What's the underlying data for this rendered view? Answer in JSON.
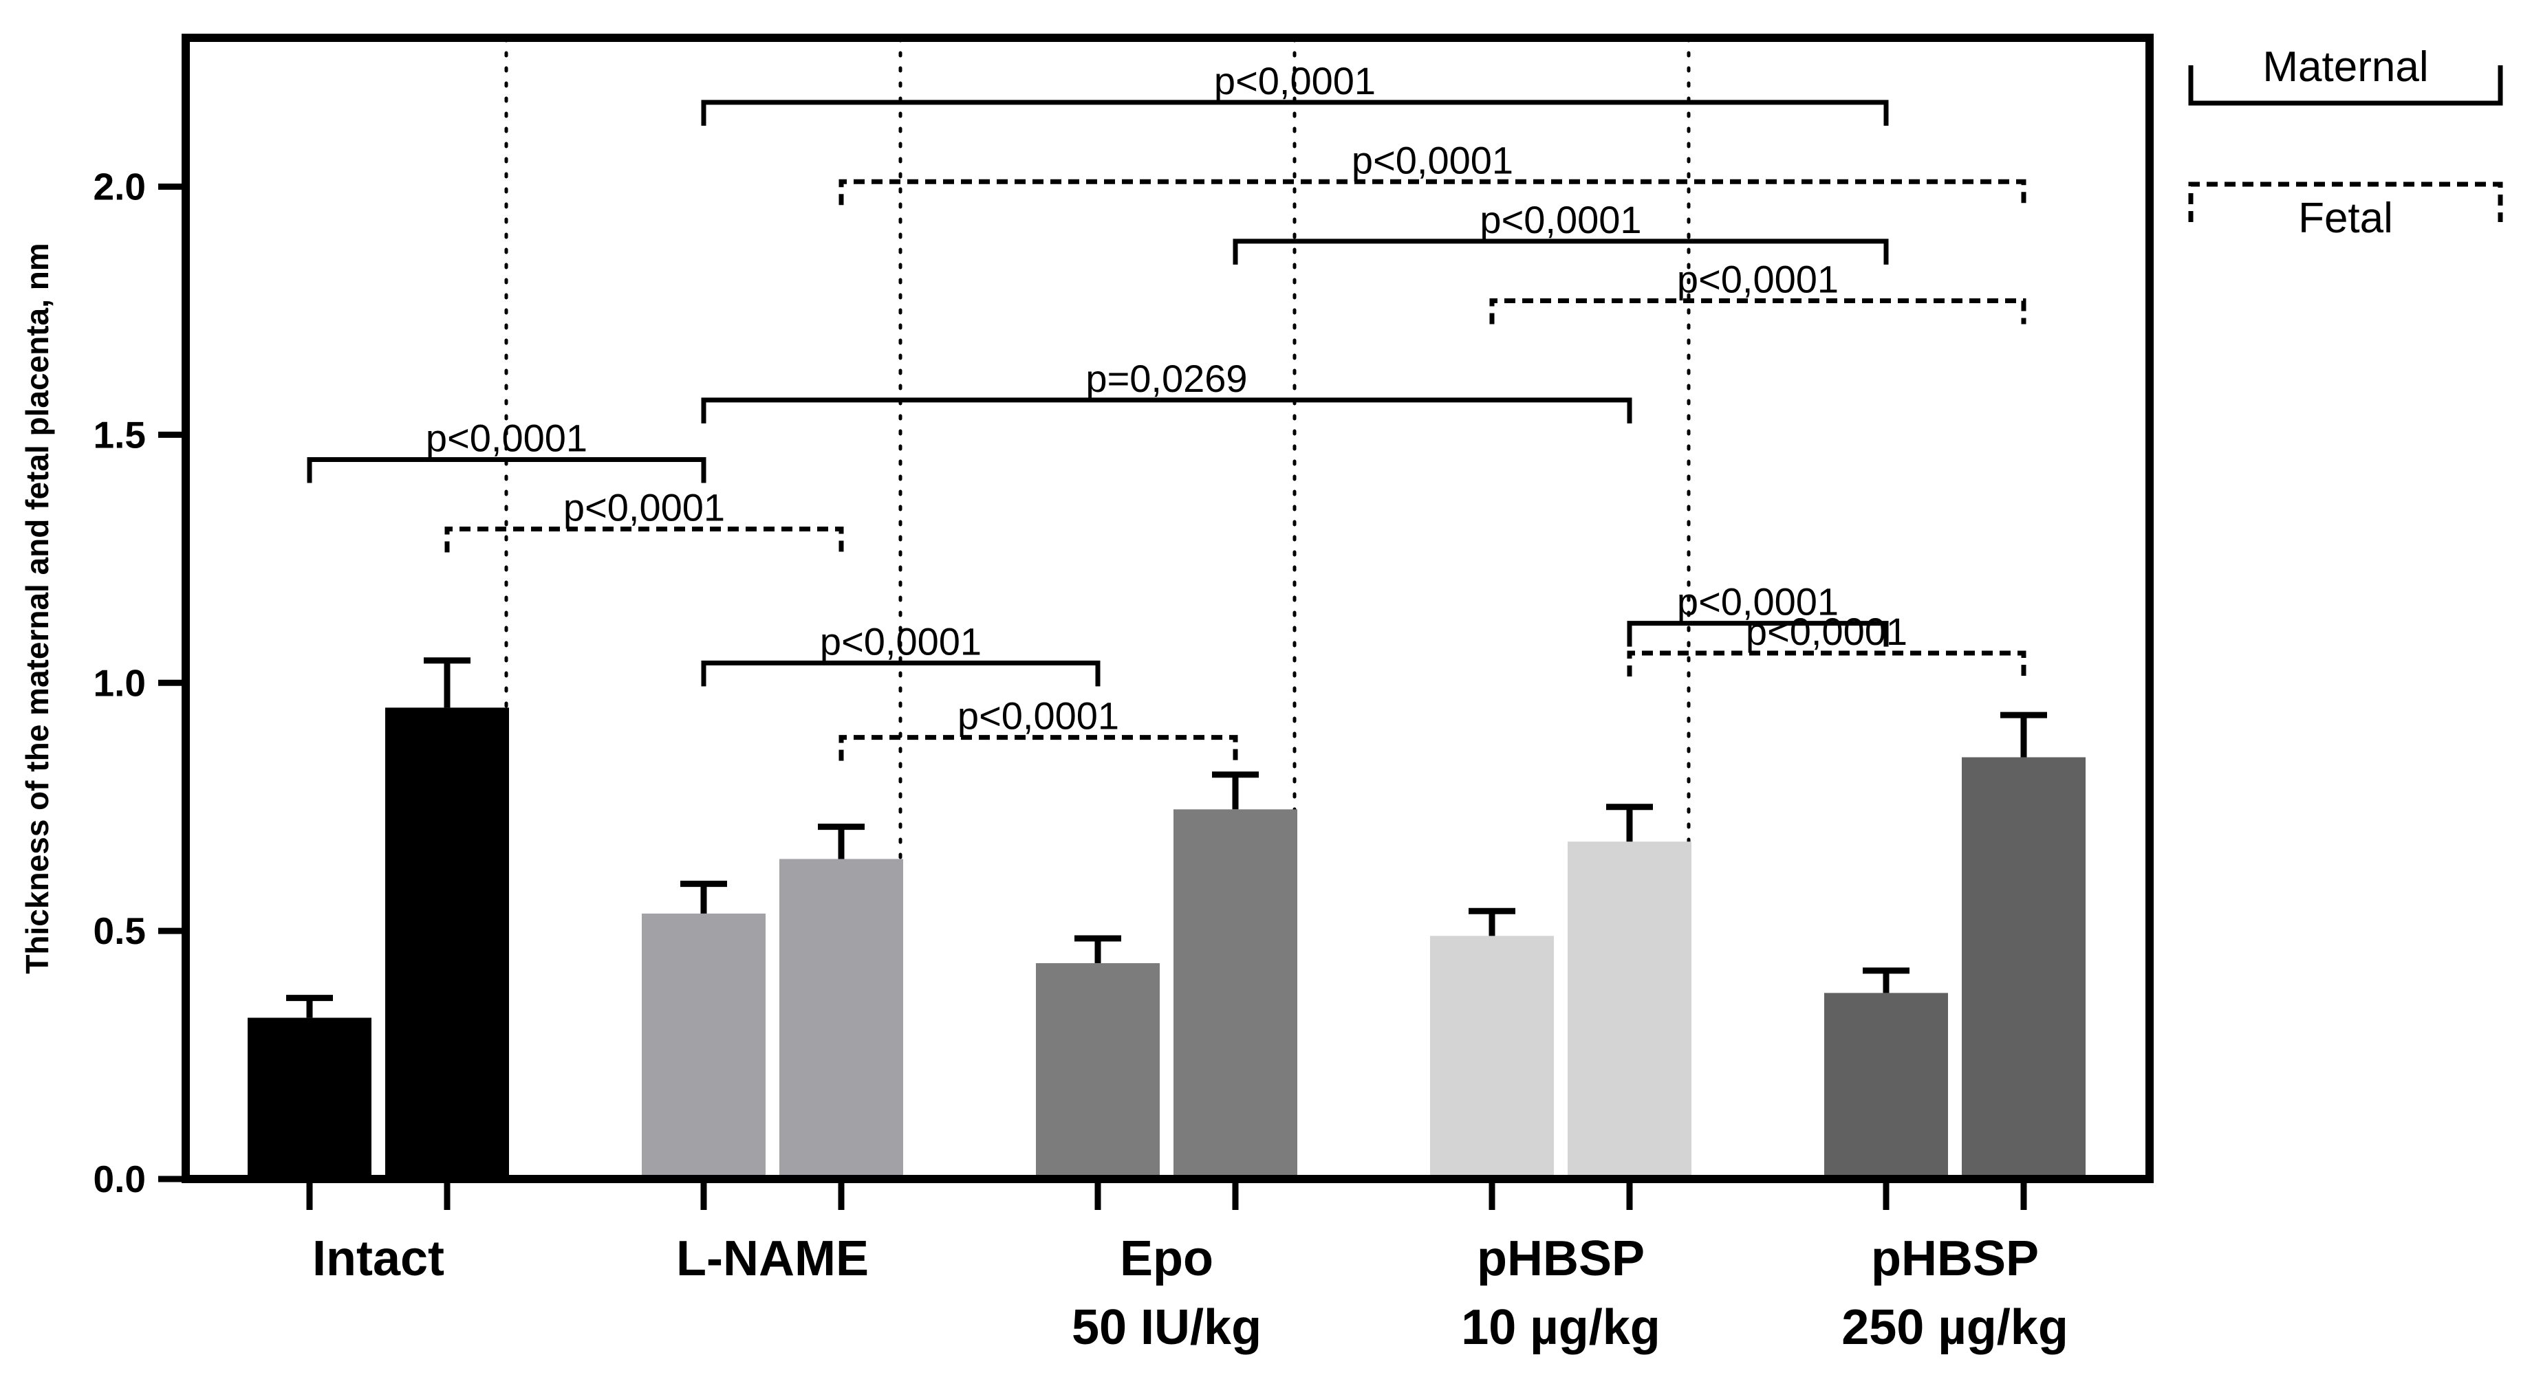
{
  "chart_data": {
    "type": "bar",
    "title": "",
    "xlabel": "",
    "ylabel": "Thickness of the maternal and fetal placenta, nm",
    "ylim": [
      0,
      2.3
    ],
    "yticks": [
      "0.0",
      "0.5",
      "1.0",
      "1.5",
      "2.0"
    ],
    "ytick_values": [
      0,
      0.5,
      1.0,
      1.5,
      2.0
    ],
    "grid": false,
    "legend_position": "top-right, outside plot",
    "groups": [
      {
        "label": "Intact",
        "sublabel": "",
        "color": "#000000",
        "maternal": 0.325,
        "maternal_err": 0.04,
        "fetal": 0.95,
        "fetal_err": 0.095
      },
      {
        "label": "L-NAME",
        "sublabel": "",
        "color": "#a2a2a6",
        "maternal": 0.535,
        "maternal_err": 0.06,
        "fetal": 0.645,
        "fetal_err": 0.065
      },
      {
        "label": "Epo",
        "sublabel": "50 IU/kg",
        "color": "#7c7c7c",
        "maternal": 0.435,
        "maternal_err": 0.05,
        "fetal": 0.745,
        "fetal_err": 0.07
      },
      {
        "label": "pHBSP",
        "sublabel": "10 µg/kg",
        "color": "#d4d4d4",
        "maternal": 0.49,
        "maternal_err": 0.05,
        "fetal": 0.68,
        "fetal_err": 0.07
      },
      {
        "label": "pHBSP",
        "sublabel": "250 µg/kg",
        "color": "#616161",
        "maternal": 0.375,
        "maternal_err": 0.045,
        "fetal": 0.85,
        "fetal_err": 0.085
      }
    ],
    "legend": [
      {
        "label": "Maternal",
        "style": "solid"
      },
      {
        "label": "Fetal",
        "style": "dashed"
      }
    ],
    "comparisons": [
      {
        "text": "p<0,0001",
        "from": [
          1,
          "maternal"
        ],
        "to": [
          4,
          "maternal"
        ],
        "y": 2.17,
        "style": "solid"
      },
      {
        "text": "p<0,0001",
        "from": [
          1,
          "fetal"
        ],
        "to": [
          4,
          "fetal"
        ],
        "y": 2.01,
        "style": "dashed"
      },
      {
        "text": "p<0,0001",
        "from": [
          2,
          "fetal"
        ],
        "to": [
          4,
          "maternal"
        ],
        "y": 1.89,
        "style": "solid"
      },
      {
        "text": "p<0,0001",
        "from": [
          3,
          "maternal"
        ],
        "to": [
          4,
          "fetal"
        ],
        "y": 1.77,
        "style": "dashed"
      },
      {
        "text": "p=0,0269",
        "from": [
          1,
          "maternal"
        ],
        "to": [
          3,
          "fetal"
        ],
        "y": 1.57,
        "style": "solid"
      },
      {
        "text": "p<0,0001",
        "from": [
          0,
          "maternal"
        ],
        "to": [
          1,
          "maternal"
        ],
        "y": 1.45,
        "style": "solid"
      },
      {
        "text": "p<0,0001",
        "from": [
          0,
          "fetal"
        ],
        "to": [
          1,
          "fetal"
        ],
        "y": 1.31,
        "style": "dashed"
      },
      {
        "text": "p<0,0001",
        "from": [
          1,
          "maternal"
        ],
        "to": [
          2,
          "maternal"
        ],
        "y": 1.04,
        "style": "solid"
      },
      {
        "text": "p<0,0001",
        "from": [
          3,
          "fetal"
        ],
        "to": [
          4,
          "maternal"
        ],
        "y": 1.12,
        "style": "solid"
      },
      {
        "text": "p<0,0001",
        "from": [
          3,
          "fetal"
        ],
        "to": [
          4,
          "fetal"
        ],
        "y": 1.06,
        "style": "dashed"
      },
      {
        "text": "p<0,0001",
        "from": [
          1,
          "fetal"
        ],
        "to": [
          2,
          "fetal"
        ],
        "y": 0.89,
        "style": "dashed"
      }
    ]
  }
}
